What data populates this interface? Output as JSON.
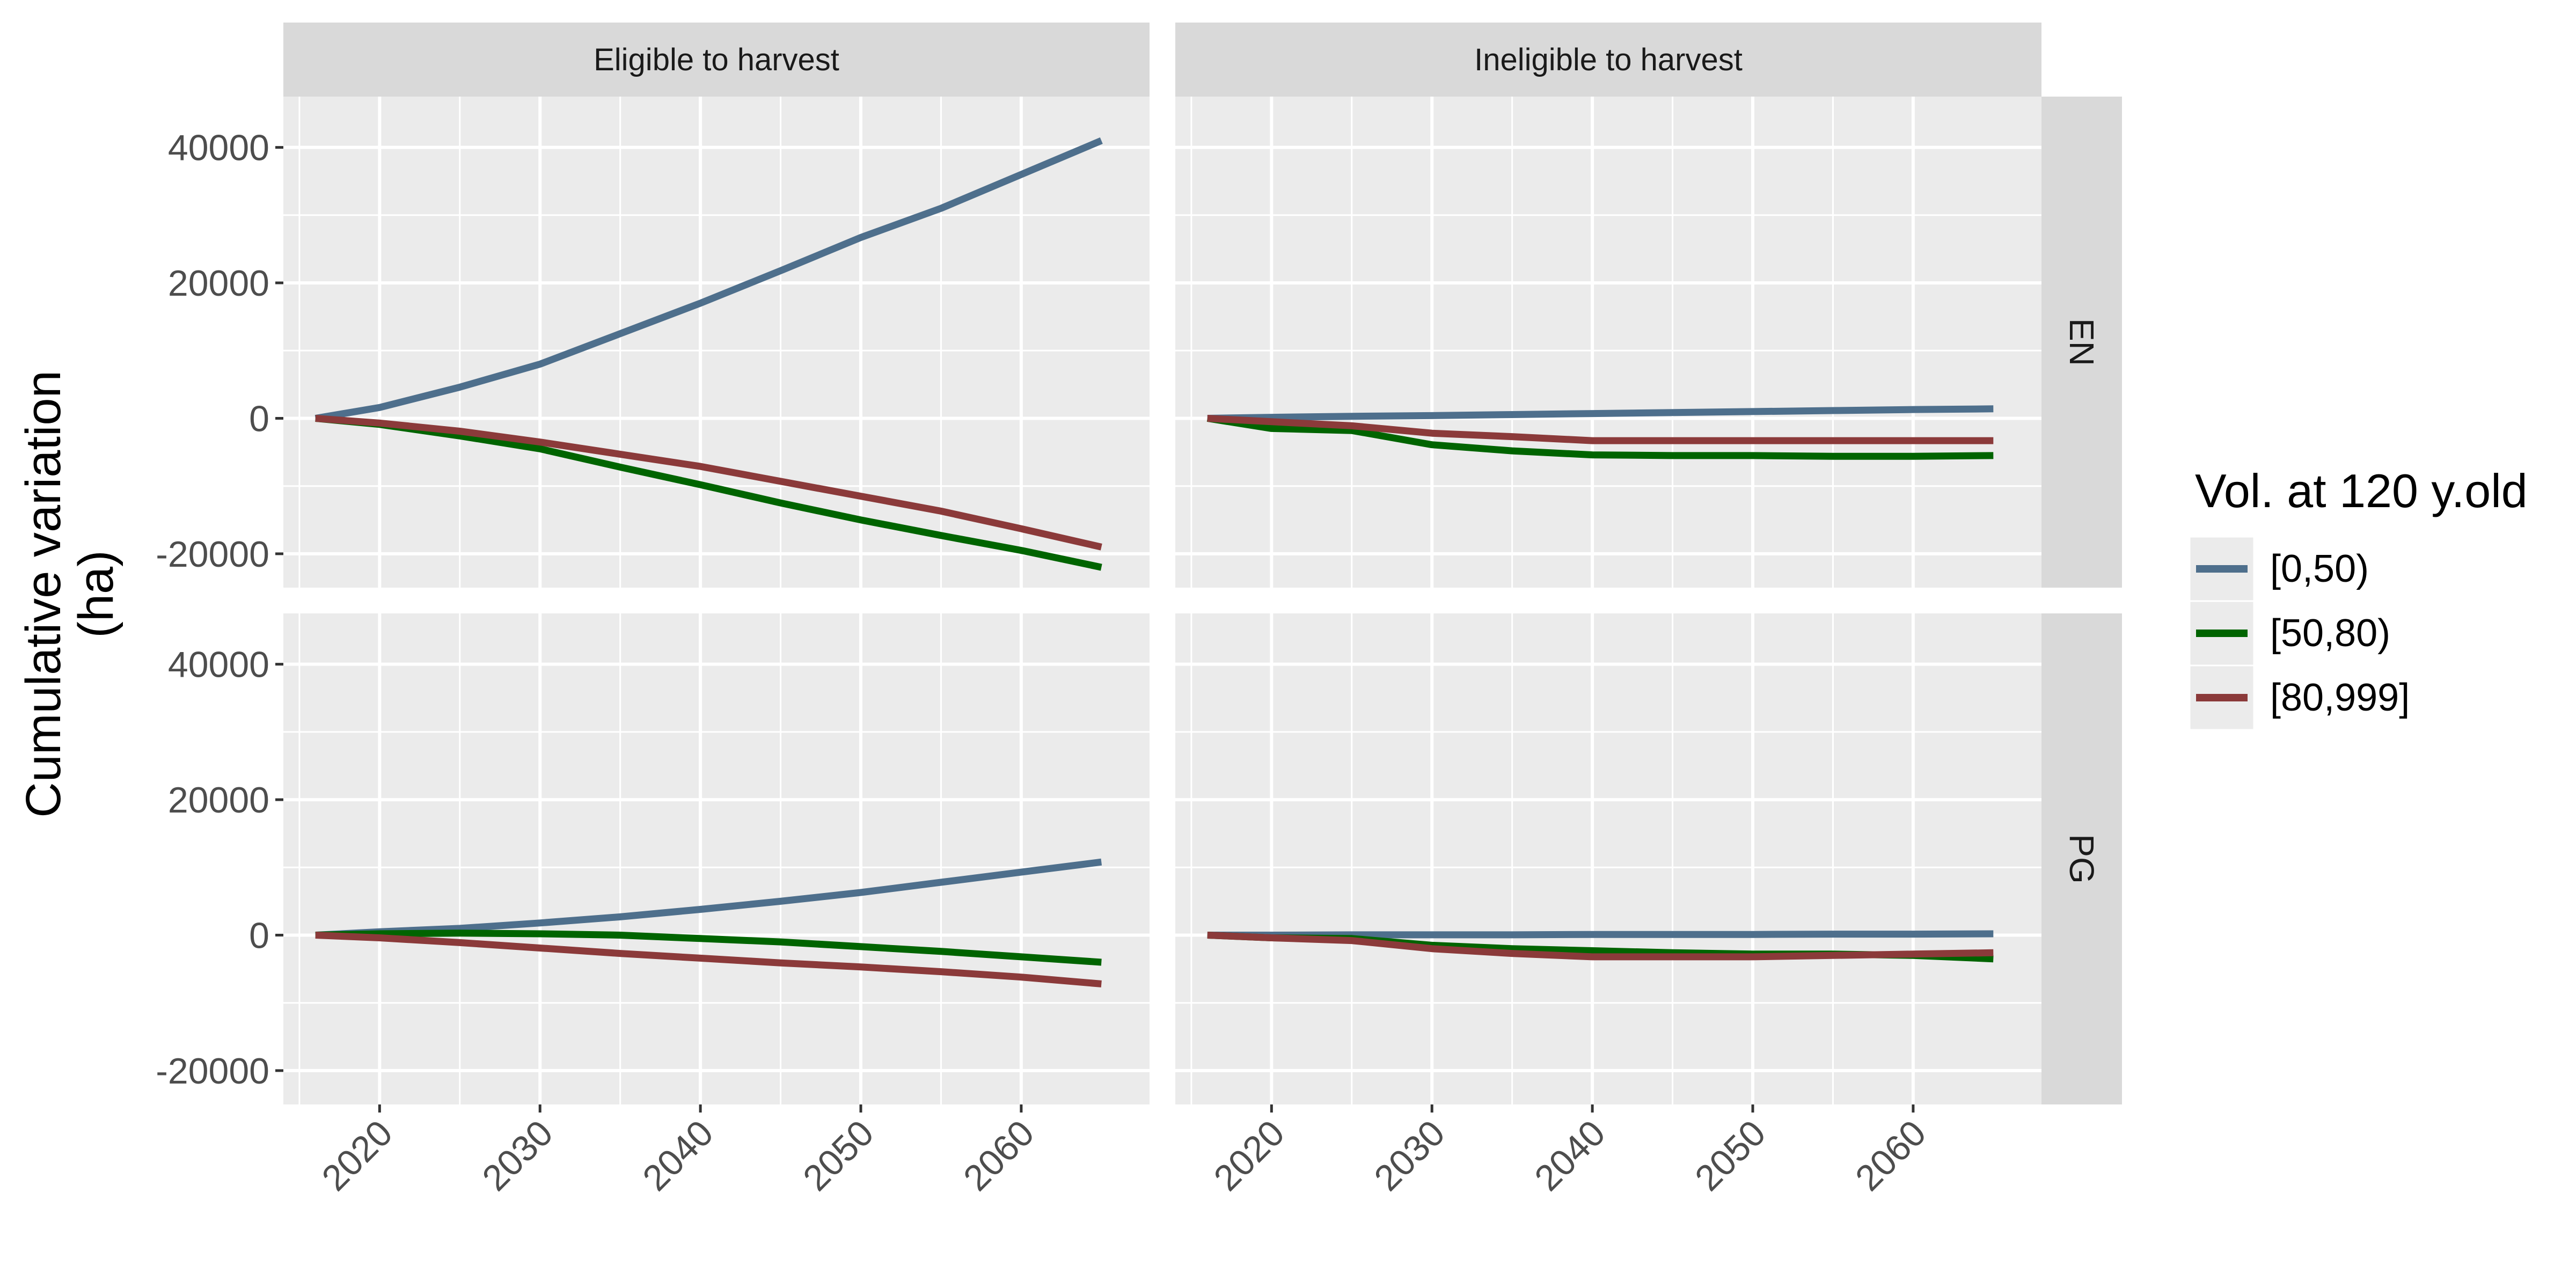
{
  "chart_data": {
    "type": "line",
    "title": "",
    "xlabel": "",
    "ylabel": "Cumulative variation (ha)",
    "ylabel_lines": [
      "Cumulative variation",
      "(ha)"
    ],
    "xlim": [
      2014,
      2068
    ],
    "ylim": [
      -25000,
      47500
    ],
    "x_ticks": [
      2020,
      2030,
      2040,
      2050,
      2060
    ],
    "y_ticks": [
      -20000,
      0,
      20000,
      40000
    ],
    "grid": true,
    "facet_columns": [
      "Eligible to harvest",
      "Ineligible to harvest"
    ],
    "facet_rows": [
      "EN",
      "PG"
    ],
    "legend": {
      "title": "Vol. at 120 y.old",
      "position": "right",
      "entries": [
        {
          "label": "[0,50)",
          "color": "#4E6F8C"
        },
        {
          "label": "[50,80)",
          "color": "#006400"
        },
        {
          "label": "[80,999]",
          "color": "#8B3A3A"
        }
      ]
    },
    "panels": [
      {
        "row": "EN",
        "column": "Eligible to harvest",
        "series": [
          {
            "name": "[0,50)",
            "x": [
              2016,
              2020,
              2025,
              2030,
              2035,
              2040,
              2045,
              2050,
              2055,
              2060,
              2065
            ],
            "y": [
              0,
              1600,
              4600,
              8000,
              12500,
              17000,
              21800,
              26700,
              31000,
              36000,
              41000
            ]
          },
          {
            "name": "[50,80)",
            "x": [
              2016,
              2020,
              2025,
              2030,
              2035,
              2040,
              2045,
              2050,
              2055,
              2060,
              2065
            ],
            "y": [
              0,
              -900,
              -2600,
              -4500,
              -7200,
              -9800,
              -12500,
              -15000,
              -17300,
              -19500,
              -22000
            ]
          },
          {
            "name": "[80,999]",
            "x": [
              2016,
              2020,
              2025,
              2030,
              2035,
              2040,
              2045,
              2050,
              2055,
              2060,
              2065
            ],
            "y": [
              0,
              -700,
              -1900,
              -3500,
              -5300,
              -7100,
              -9300,
              -11500,
              -13700,
              -16300,
              -19000
            ]
          }
        ]
      },
      {
        "row": "EN",
        "column": "Ineligible to harvest",
        "series": [
          {
            "name": "[0,50)",
            "x": [
              2016,
              2020,
              2025,
              2030,
              2035,
              2040,
              2045,
              2050,
              2055,
              2060,
              2065
            ],
            "y": [
              0,
              150,
              300,
              400,
              550,
              700,
              850,
              1000,
              1150,
              1300,
              1400
            ]
          },
          {
            "name": "[50,80)",
            "x": [
              2016,
              2020,
              2025,
              2030,
              2035,
              2040,
              2045,
              2050,
              2055,
              2060,
              2065
            ],
            "y": [
              0,
              -1500,
              -1800,
              -3900,
              -4800,
              -5400,
              -5500,
              -5500,
              -5600,
              -5600,
              -5500
            ]
          },
          {
            "name": "[80,999]",
            "x": [
              2016,
              2020,
              2025,
              2030,
              2035,
              2040,
              2045,
              2050,
              2055,
              2060,
              2065
            ],
            "y": [
              0,
              -500,
              -1100,
              -2200,
              -2700,
              -3300,
              -3300,
              -3300,
              -3300,
              -3300,
              -3300
            ]
          }
        ]
      },
      {
        "row": "PG",
        "column": "Eligible to harvest",
        "series": [
          {
            "name": "[0,50)",
            "x": [
              2016,
              2020,
              2025,
              2030,
              2035,
              2040,
              2045,
              2050,
              2055,
              2060,
              2065
            ],
            "y": [
              0,
              500,
              1000,
              1800,
              2700,
              3800,
              5000,
              6300,
              7800,
              9300,
              10800
            ]
          },
          {
            "name": "[50,80)",
            "x": [
              2016,
              2020,
              2025,
              2030,
              2035,
              2040,
              2045,
              2050,
              2055,
              2060,
              2065
            ],
            "y": [
              0,
              200,
              300,
              200,
              0,
              -500,
              -1000,
              -1700,
              -2400,
              -3200,
              -4000
            ]
          },
          {
            "name": "[80,999]",
            "x": [
              2016,
              2020,
              2025,
              2030,
              2035,
              2040,
              2045,
              2050,
              2055,
              2060,
              2065
            ],
            "y": [
              0,
              -400,
              -1100,
              -1900,
              -2700,
              -3400,
              -4100,
              -4700,
              -5400,
              -6200,
              -7200
            ]
          }
        ]
      },
      {
        "row": "PG",
        "column": "Ineligible to harvest",
        "series": [
          {
            "name": "[0,50)",
            "x": [
              2016,
              2020,
              2025,
              2030,
              2035,
              2040,
              2045,
              2050,
              2055,
              2060,
              2065
            ],
            "y": [
              0,
              0,
              50,
              50,
              50,
              100,
              100,
              100,
              150,
              150,
              200
            ]
          },
          {
            "name": "[50,80)",
            "x": [
              2016,
              2020,
              2025,
              2030,
              2035,
              2040,
              2045,
              2050,
              2055,
              2060,
              2065
            ],
            "y": [
              0,
              -400,
              -500,
              -1500,
              -2000,
              -2300,
              -2600,
              -2800,
              -2800,
              -3000,
              -3500
            ]
          },
          {
            "name": "[80,999]",
            "x": [
              2016,
              2020,
              2025,
              2030,
              2035,
              2040,
              2045,
              2050,
              2055,
              2060,
              2065
            ],
            "y": [
              0,
              -400,
              -800,
              -2000,
              -2700,
              -3200,
              -3200,
              -3200,
              -3000,
              -2800,
              -2600
            ]
          }
        ]
      }
    ]
  }
}
